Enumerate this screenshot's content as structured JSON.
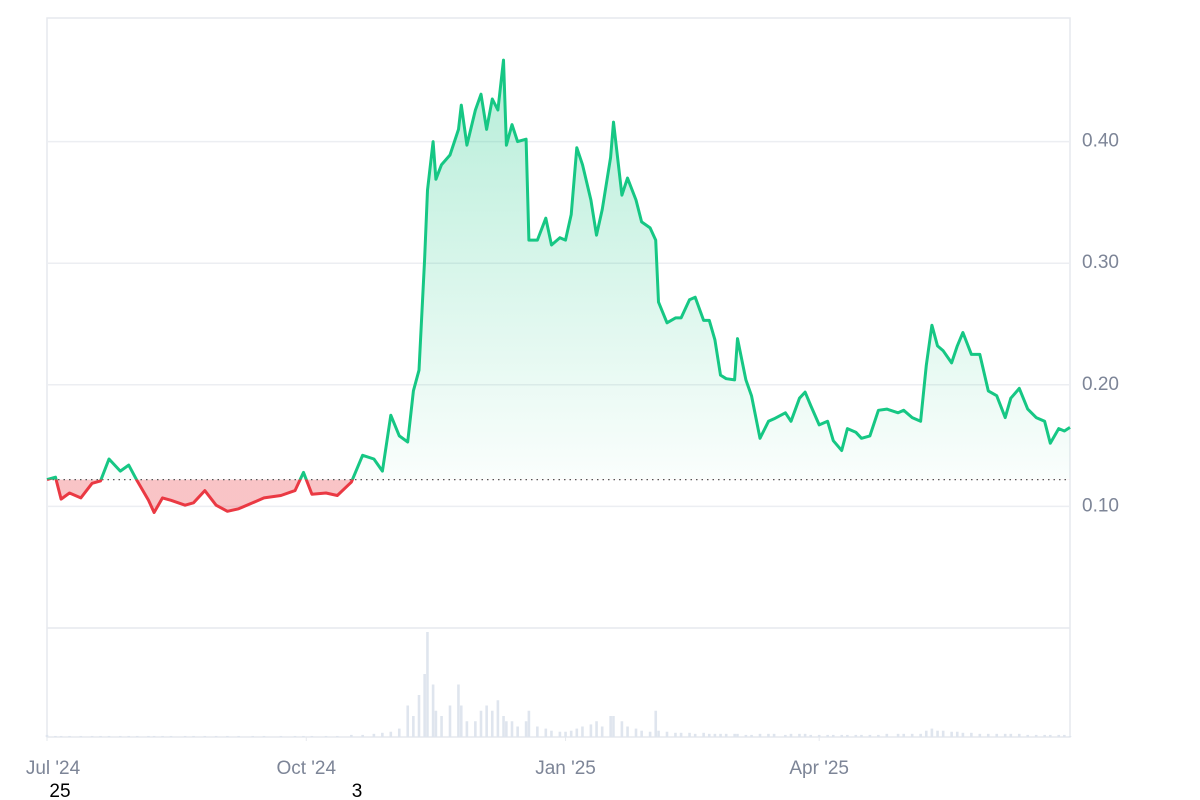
{
  "chart_data": {
    "type": "line",
    "x": [
      0,
      3,
      5,
      8,
      12,
      16,
      19,
      22,
      26,
      29,
      32,
      36,
      38,
      41,
      44,
      49,
      52,
      56,
      60,
      64,
      68,
      73,
      77,
      83,
      88,
      91,
      94,
      99,
      103,
      108,
      112,
      116,
      119,
      122,
      125,
      128,
      130,
      132,
      134,
      135,
      137,
      138,
      140,
      143,
      146,
      147,
      149,
      152,
      154,
      156,
      158,
      160,
      162,
      163,
      165,
      167,
      170,
      171,
      174,
      177,
      179,
      182,
      184,
      186,
      188,
      190,
      193,
      195,
      197,
      200,
      201,
      204,
      206,
      209,
      211,
      214,
      216,
      217,
      220,
      223,
      225,
      228,
      230,
      233,
      235,
      237,
      239,
      241,
      244,
      245,
      248,
      250,
      253,
      256,
      258,
      262,
      264,
      267,
      269,
      271,
      274,
      277,
      279,
      282,
      284,
      287,
      289,
      292,
      295,
      298,
      302,
      304,
      307,
      310,
      312,
      314,
      316,
      318,
      321,
      323,
      325,
      328,
      331,
      334,
      337,
      340,
      342,
      345,
      348,
      351,
      354,
      356,
      359,
      361,
      363
    ],
    "values": [
      0.122,
      0.124,
      0.106,
      0.111,
      0.107,
      0.119,
      0.121,
      0.139,
      0.129,
      0.134,
      0.121,
      0.105,
      0.095,
      0.107,
      0.105,
      0.101,
      0.103,
      0.113,
      0.101,
      0.096,
      0.098,
      0.103,
      0.107,
      0.109,
      0.113,
      0.128,
      0.11,
      0.111,
      0.109,
      0.12,
      0.142,
      0.139,
      0.129,
      0.175,
      0.158,
      0.153,
      0.195,
      0.212,
      0.303,
      0.36,
      0.4,
      0.369,
      0.381,
      0.389,
      0.41,
      0.43,
      0.397,
      0.426,
      0.439,
      0.41,
      0.435,
      0.426,
      0.467,
      0.397,
      0.414,
      0.4,
      0.402,
      0.319,
      0.319,
      0.337,
      0.315,
      0.321,
      0.319,
      0.34,
      0.395,
      0.381,
      0.352,
      0.323,
      0.344,
      0.387,
      0.416,
      0.356,
      0.37,
      0.352,
      0.334,
      0.329,
      0.319,
      0.268,
      0.251,
      0.255,
      0.255,
      0.27,
      0.272,
      0.253,
      0.253,
      0.237,
      0.208,
      0.205,
      0.204,
      0.238,
      0.204,
      0.191,
      0.156,
      0.17,
      0.172,
      0.177,
      0.17,
      0.189,
      0.194,
      0.183,
      0.167,
      0.17,
      0.154,
      0.146,
      0.164,
      0.161,
      0.156,
      0.158,
      0.179,
      0.18,
      0.177,
      0.179,
      0.173,
      0.17,
      0.216,
      0.249,
      0.232,
      0.228,
      0.218,
      0.232,
      0.243,
      0.225,
      0.225,
      0.195,
      0.191,
      0.173,
      0.189,
      0.197,
      0.18,
      0.173,
      0.17,
      0.152,
      0.164,
      0.162,
      0.165
    ],
    "color": "#16c784",
    "down_color": "#ea3943",
    "baseline": 0.122,
    "xlim": [
      0,
      363
    ],
    "xticks": [
      {
        "value": 0,
        "label": "Jul '24"
      },
      {
        "value": 92,
        "label": "Oct '24"
      },
      {
        "value": 184,
        "label": "Jan '25"
      },
      {
        "value": 274,
        "label": "Apr '25"
      }
    ],
    "ylim": [
      0,
      0.5
    ],
    "yticks": [
      {
        "value": 0.1,
        "label": "0.10"
      },
      {
        "value": 0.2,
        "label": "0.20"
      },
      {
        "value": 0.3,
        "label": "0.30"
      },
      {
        "value": 0.4,
        "label": "0.40"
      }
    ],
    "grid": true,
    "volume": {
      "color": "#dfe5ee",
      "ylim": [
        0,
        100
      ],
      "values": [
        2,
        1,
        1,
        1,
        1,
        1,
        1,
        1,
        1,
        1,
        1,
        1,
        1,
        1,
        1,
        1,
        1,
        1,
        1,
        1,
        1,
        1,
        1,
        1,
        1,
        1,
        1,
        1,
        1,
        2,
        2,
        3,
        4,
        5,
        8,
        30,
        20,
        40,
        60,
        100,
        50,
        25,
        20,
        30,
        50,
        30,
        15,
        15,
        25,
        30,
        25,
        35,
        20,
        15,
        15,
        10,
        15,
        25,
        10,
        8,
        6,
        5,
        5,
        6,
        8,
        10,
        12,
        15,
        10,
        20,
        20,
        15,
        10,
        8,
        6,
        5,
        25,
        6,
        5,
        4,
        4,
        4,
        3,
        4,
        3,
        3,
        3,
        3,
        3,
        3,
        2,
        2,
        3,
        3,
        3,
        2,
        3,
        3,
        3,
        2,
        2,
        2,
        2,
        2,
        2,
        2,
        2,
        2,
        2,
        3,
        3,
        3,
        3,
        3,
        6,
        8,
        6,
        6,
        5,
        5,
        4,
        4,
        3,
        3,
        3,
        3,
        3,
        3,
        2,
        2,
        2,
        2,
        2,
        2,
        1
      ]
    },
    "footer_labels": [
      "25",
      "3"
    ]
  }
}
